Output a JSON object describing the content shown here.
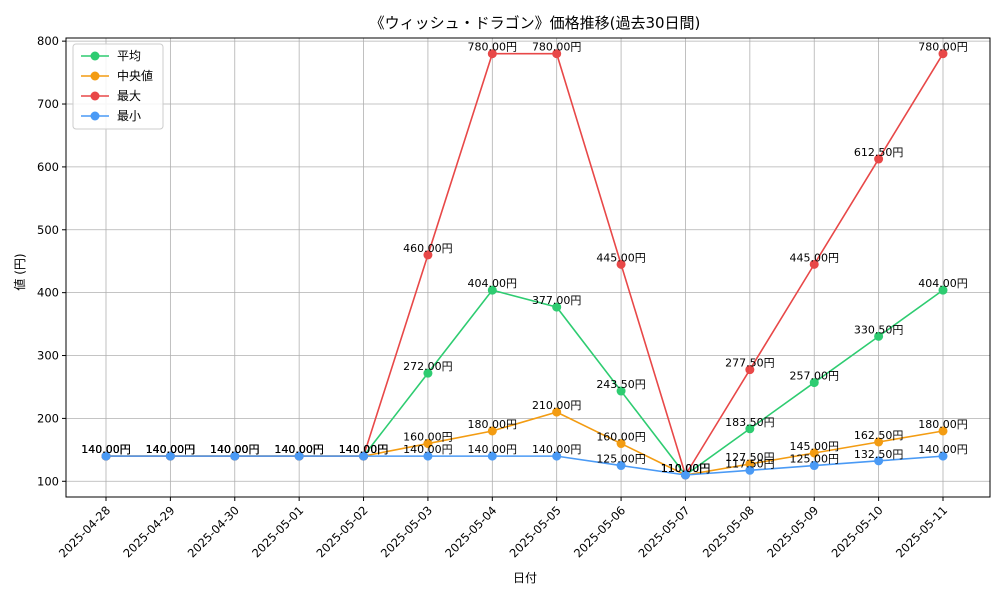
{
  "chart_data": {
    "type": "line",
    "title": "《ウィッシュ・ドラゴン》価格推移(過去30日間)",
    "xlabel": "日付",
    "ylabel": "値 (円)",
    "ylim": [
      75,
      805
    ],
    "yticks": [
      100,
      200,
      300,
      400,
      500,
      600,
      700,
      800
    ],
    "grid": true,
    "legend_position": "top-left",
    "value_suffix": "円",
    "categories": [
      "2025-04-28",
      "2025-04-29",
      "2025-04-30",
      "2025-05-01",
      "2025-05-02",
      "2025-05-03",
      "2025-05-04",
      "2025-05-05",
      "2025-05-06",
      "2025-05-07",
      "2025-05-08",
      "2025-05-09",
      "2025-05-10",
      "2025-05-11"
    ],
    "series": [
      {
        "name": "平均",
        "color": "#2ecc71",
        "values": [
          140,
          140,
          140,
          140,
          140,
          272,
          404,
          377,
          243.5,
          110,
          183.5,
          257,
          330.5,
          404
        ]
      },
      {
        "name": "中央値",
        "color": "#f39c12",
        "values": [
          140,
          140,
          140,
          140,
          140,
          160,
          180,
          210,
          160,
          110,
          127.5,
          145,
          162.5,
          180
        ]
      },
      {
        "name": "最大",
        "color": "#e84848",
        "values": [
          140,
          140,
          140,
          140,
          140,
          460,
          780,
          780,
          445,
          110,
          277.5,
          445,
          612.5,
          780
        ]
      },
      {
        "name": "最小",
        "color": "#4a9af5",
        "values": [
          140,
          140,
          140,
          140,
          140,
          140,
          140,
          140,
          125,
          110,
          117.5,
          125,
          132.5,
          140
        ]
      }
    ]
  }
}
